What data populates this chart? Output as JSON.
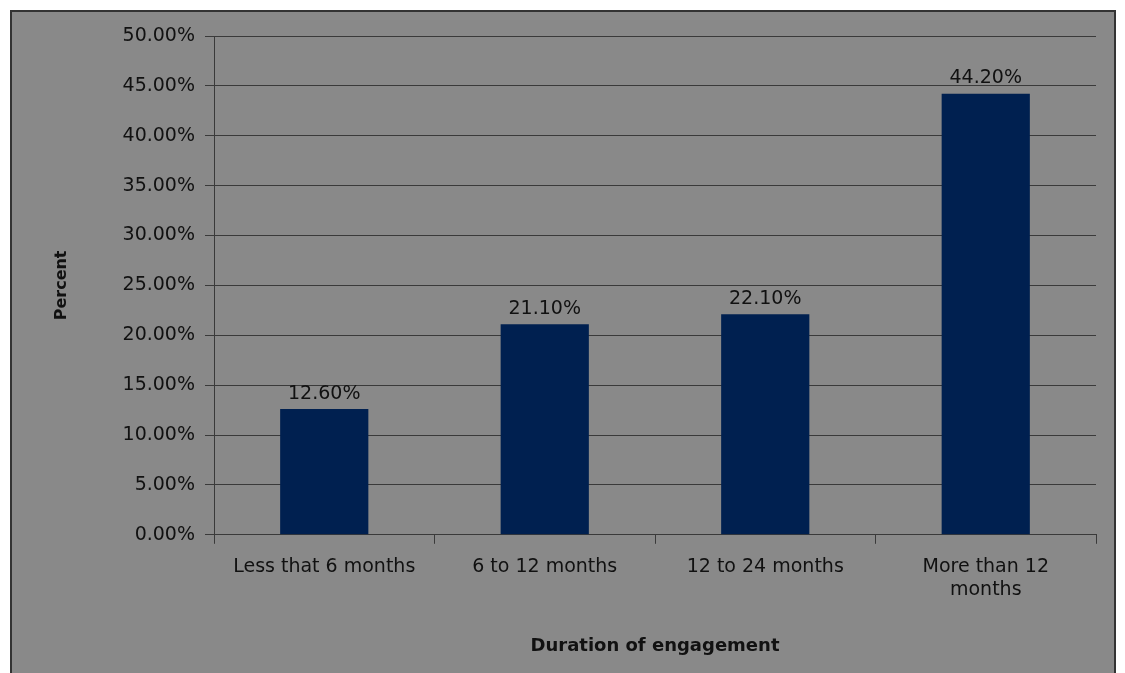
{
  "chart_data": {
    "type": "bar",
    "xlabel": "Duration of engagement",
    "ylabel": "Percent",
    "categories": [
      "Less that 6 months",
      "6 to 12 months",
      "12 to 24 months",
      "More than 12 months"
    ],
    "values": [
      12.6,
      21.1,
      22.1,
      44.2
    ],
    "value_labels": [
      "12.60%",
      "21.10%",
      "22.10%",
      "44.20%"
    ],
    "color": "#002050",
    "ylim": [
      0,
      50
    ],
    "yticks": [
      {
        "value": 0,
        "label": "0.00%"
      },
      {
        "value": 5,
        "label": "5.00%"
      },
      {
        "value": 10,
        "label": "10.00%"
      },
      {
        "value": 15,
        "label": "15.00%"
      },
      {
        "value": 20,
        "label": "20.00%"
      },
      {
        "value": 25,
        "label": "25.00%"
      },
      {
        "value": 30,
        "label": "30.00%"
      },
      {
        "value": 35,
        "label": "35.00%"
      },
      {
        "value": 40,
        "label": "40.00%"
      },
      {
        "value": 45,
        "label": "45.00%"
      },
      {
        "value": 50,
        "label": "50.00%"
      }
    ],
    "grid": "y"
  }
}
